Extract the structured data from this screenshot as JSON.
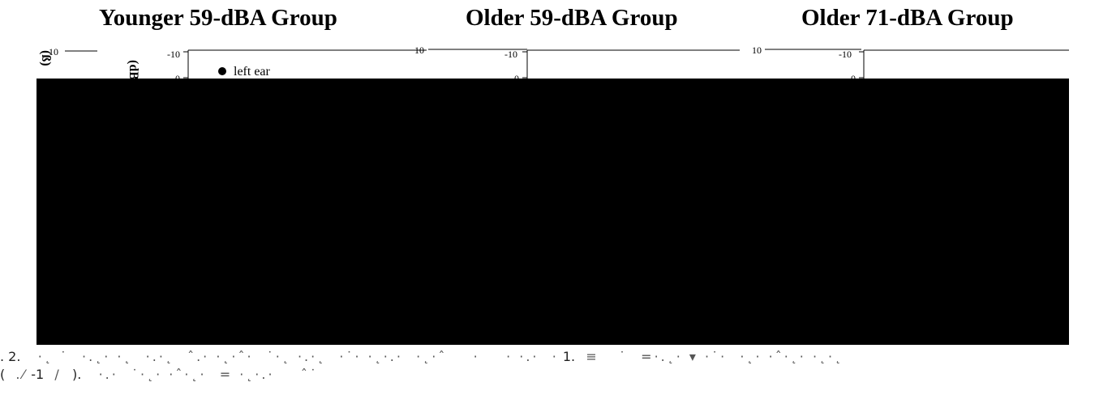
{
  "titles": {
    "younger_59": "Younger 59-dBA Group",
    "older_59": "Older 59-dBA Group",
    "older_71": "Older 71-dBA Group"
  },
  "legend": {
    "left_ear": "left ear"
  },
  "axis": {
    "y_unit_fragment": "(dB",
    "tick_top": "-10",
    "tick_zero": "0",
    "outer_tick": "10"
  },
  "chart_data": [
    {
      "type": "line",
      "title": "Younger 59-dBA Group",
      "ylabel_fragment": "(dB",
      "visible_ticks": [
        "-10",
        "0"
      ],
      "legend": [
        "left ear"
      ],
      "series": [],
      "note": ""
    },
    {
      "type": "line",
      "title": "Older 59-dBA Group",
      "visible_ticks": [
        "-10",
        "0"
      ],
      "series": []
    },
    {
      "type": "line",
      "title": "Older 71-dBA Group",
      "visible_ticks": [
        "-10",
        "0"
      ],
      "series": []
    }
  ],
  "caption": {
    "line1_prefix": ". 2.",
    "line1_mid": "1.",
    "line2_prefix": "(",
    "line2_mid": "-1",
    "line2_end": ")."
  }
}
